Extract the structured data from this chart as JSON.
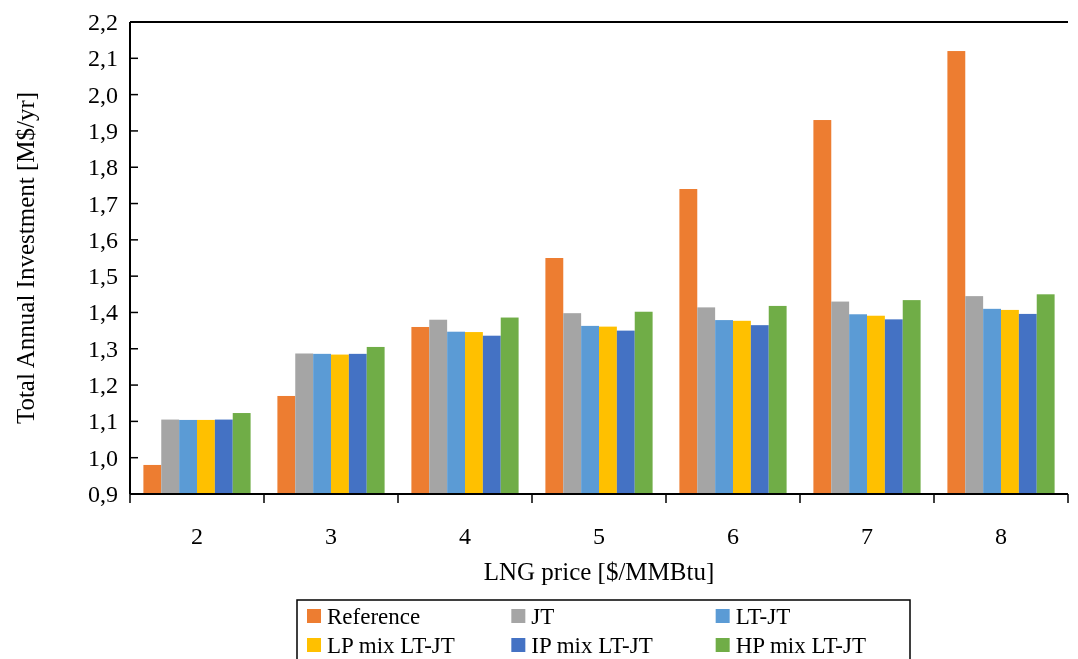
{
  "chart_data": {
    "type": "bar",
    "xlabel": "LNG price [$/MMBtu]",
    "ylabel": "Total Annual Investment [M$/yr]",
    "categories": [
      "2",
      "3",
      "4",
      "5",
      "6",
      "7",
      "8"
    ],
    "series": [
      {
        "name": "Reference",
        "color": "#ed7d31",
        "values": [
          0.98,
          1.17,
          1.36,
          1.55,
          1.74,
          1.93,
          2.12
        ]
      },
      {
        "name": "JT",
        "color": "#a5a5a5",
        "values": [
          1.105,
          1.287,
          1.38,
          1.398,
          1.414,
          1.43,
          1.445
        ]
      },
      {
        "name": "LT-JT",
        "color": "#5b9bd5",
        "values": [
          1.104,
          1.286,
          1.347,
          1.363,
          1.379,
          1.395,
          1.41
        ]
      },
      {
        "name": "LP mix LT-JT",
        "color": "#ffc000",
        "values": [
          1.104,
          1.284,
          1.346,
          1.361,
          1.377,
          1.391,
          1.407
        ]
      },
      {
        "name": "IP mix LT-JT",
        "color": "#4472c4",
        "values": [
          1.105,
          1.286,
          1.336,
          1.35,
          1.365,
          1.381,
          1.396
        ]
      },
      {
        "name": "HP mix LT-JT",
        "color": "#70ad47",
        "values": [
          1.123,
          1.305,
          1.386,
          1.402,
          1.418,
          1.434,
          1.45
        ]
      }
    ],
    "ylim": [
      0.9,
      2.2
    ],
    "yticks": [
      {
        "value": 0.9,
        "label": "0,9"
      },
      {
        "value": 1.0,
        "label": "1,0"
      },
      {
        "value": 1.1,
        "label": "1,1"
      },
      {
        "value": 1.2,
        "label": "1,2"
      },
      {
        "value": 1.3,
        "label": "1,3"
      },
      {
        "value": 1.4,
        "label": "1,4"
      },
      {
        "value": 1.5,
        "label": "1,5"
      },
      {
        "value": 1.6,
        "label": "1,6"
      },
      {
        "value": 1.7,
        "label": "1,7"
      },
      {
        "value": 1.8,
        "label": "1,8"
      },
      {
        "value": 1.9,
        "label": "1,9"
      },
      {
        "value": 2.0,
        "label": "2,0"
      },
      {
        "value": 2.1,
        "label": "2,1"
      },
      {
        "value": 2.2,
        "label": "2,2"
      }
    ],
    "legend": "bottom"
  }
}
